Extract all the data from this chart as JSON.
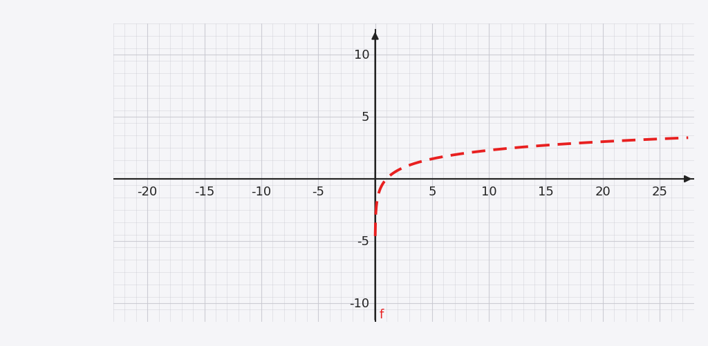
{
  "bg_color": "#f5f5f8",
  "grid_color": "#c8c8d0",
  "axis_color": "#222222",
  "curve_color": "#e82020",
  "curve_linewidth": 2.8,
  "curve_dashes": [
    10,
    6
  ],
  "xlim": [
    -23,
    28
  ],
  "ylim": [
    -11.5,
    12
  ],
  "xticks": [
    -20,
    -15,
    -10,
    -5,
    0,
    5,
    10,
    15,
    20,
    25
  ],
  "yticks": [
    -10,
    -5,
    0,
    5,
    10
  ],
  "tick_fontsize": 13,
  "label_f": "f",
  "label_f_color": "#e82020",
  "label_f_fontsize": 13,
  "border_top_color": "#3ab5d8",
  "border_bottom_color": "#3ab5d8",
  "border_width": 12,
  "logo_bg_color": "#1c2a38",
  "x_start": 0.01,
  "x_end": 27.5
}
